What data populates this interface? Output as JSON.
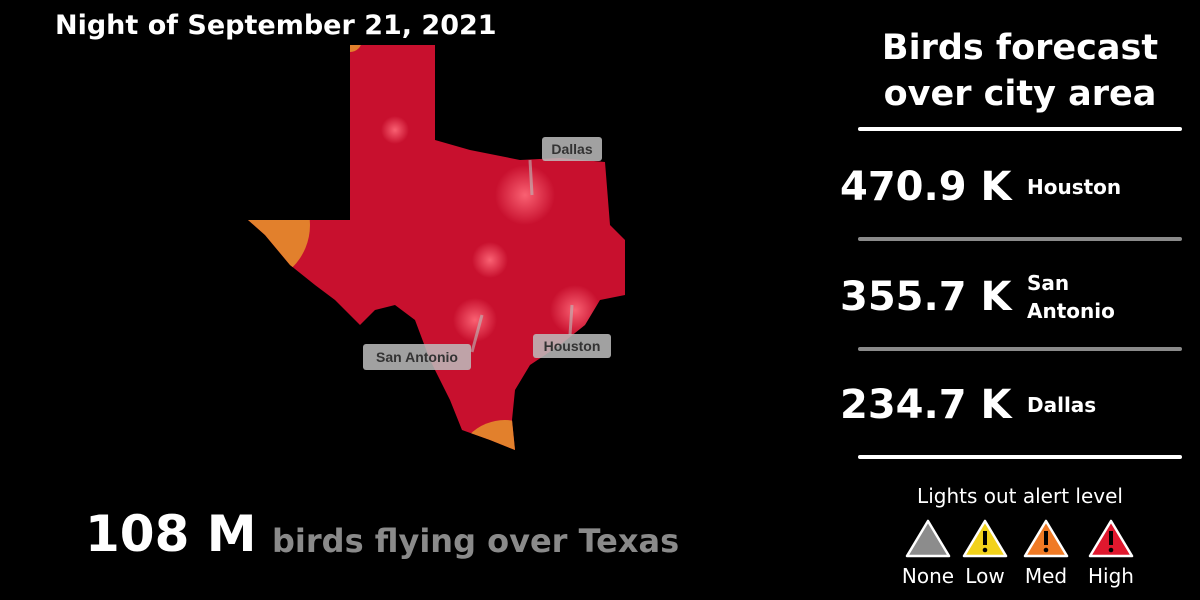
{
  "header": {
    "date": "Night of September 21, 2021"
  },
  "map": {
    "labels": [
      "Dallas",
      "San Antonio",
      "Houston"
    ]
  },
  "total": {
    "value": "108 M",
    "text": "birds flying over Texas"
  },
  "panel": {
    "title": "Birds forecast over city area",
    "rows": [
      {
        "value": "470.9 K",
        "city": "Houston"
      },
      {
        "value": "355.7 K",
        "city": "San Antonio"
      },
      {
        "value": "234.7 K",
        "city": "Dallas"
      }
    ]
  },
  "legend": {
    "title": "Lights out alert level",
    "items": [
      {
        "label": "None",
        "color": "#8c8c8c"
      },
      {
        "label": "Low",
        "color": "#f2d21b"
      },
      {
        "label": "Med",
        "color": "#f07a25"
      },
      {
        "label": "High",
        "color": "#e0182e"
      }
    ]
  }
}
